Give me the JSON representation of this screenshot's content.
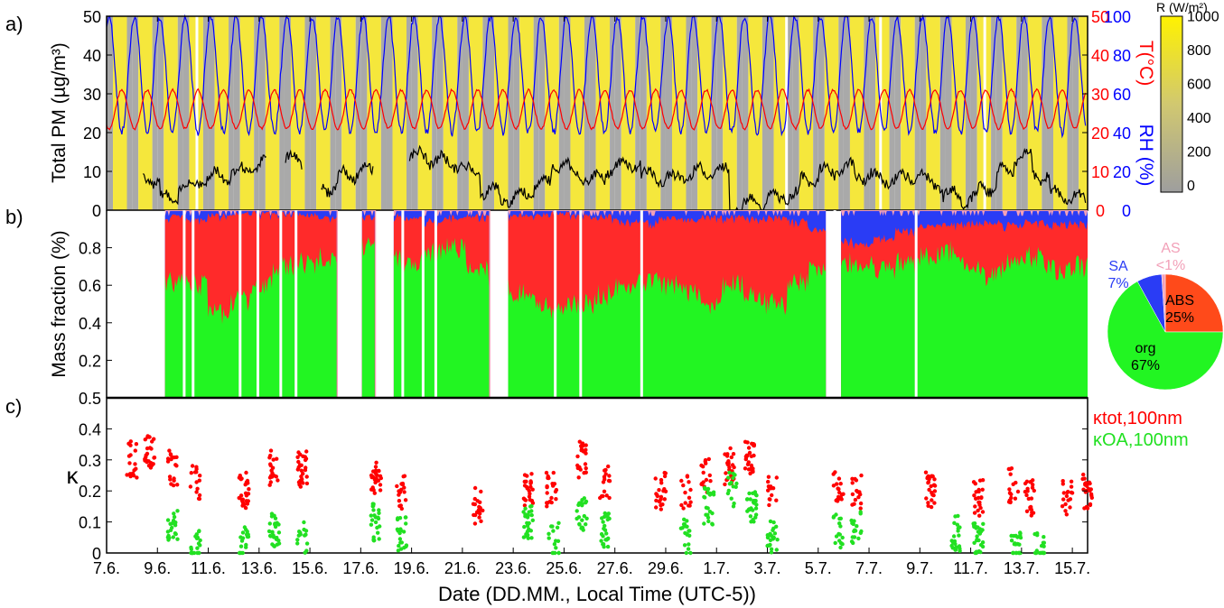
{
  "colors": {
    "rh": "#0000ff",
    "temp": "#ff0000",
    "pm": "#000000",
    "night": "#a9a9a9",
    "day": "#f5e73c",
    "org": "#22f522",
    "abs": "#ff2a2a",
    "sa": "#2a3cf5",
    "as": "#f2a0b8",
    "pie_abs": "#ff4a1a"
  },
  "labels": {
    "panel_a": "a)",
    "panel_b": "b)",
    "panel_c": "c)",
    "ylabel_a": "Total PM (µg/m³)",
    "ylabel_t": "T(°C)",
    "ylabel_rh": "RH (%)",
    "ylabel_b": "Mass fraction (%)",
    "ylabel_c": "κ",
    "xlabel": "Date (DD.MM., Local Time (UTC-5))",
    "colorbar_title": "R (W/m²)",
    "kappa_tot": "κtot,100nm",
    "kappa_oa": "κOA,100nm"
  },
  "chart_data": [
    {
      "type": "line",
      "panel": "a",
      "x_ticks": [
        "7.6.",
        "9.6.",
        "11.6.",
        "13.6.",
        "15.6.",
        "17.6.",
        "19.6.",
        "21.6.",
        "23.6.",
        "25.6.",
        "27.6.",
        "29.6.",
        "1.7.",
        "3.7.",
        "5.7.",
        "7.7.",
        "9.7.",
        "11.7.",
        "13.7.",
        "15.7."
      ],
      "ylim_pm": [
        0,
        50
      ],
      "yticks_pm": [
        "0",
        "10",
        "20",
        "30",
        "40",
        "50"
      ],
      "yticks_t": [
        "0",
        "10",
        "20",
        "30",
        "40",
        "50"
      ],
      "yticks_rh": [
        "0",
        "20",
        "40",
        "60",
        "80",
        "100"
      ],
      "colorbar": {
        "range": [
          0,
          1000
        ],
        "ticks": [
          "0",
          "200",
          "400",
          "600",
          "800",
          "1000"
        ]
      },
      "series": [
        {
          "name": "Total PM",
          "pm_daily_mean": [
            null,
            null,
            8,
            3,
            6,
            8,
            9,
            10,
            12,
            null,
            13,
            null,
            6,
            9,
            10,
            null,
            null,
            14,
            13,
            12,
            10,
            5,
            3,
            4,
            7,
            12,
            9,
            8,
            11,
            12,
            9,
            8,
            9,
            10,
            10,
            1,
            2,
            3,
            4,
            8,
            10,
            11,
            9,
            8,
            8,
            9,
            7,
            4,
            3,
            6,
            10,
            14,
            9,
            4,
            3
          ]
        },
        {
          "name": "T",
          "t_daily_min": 21,
          "t_daily_max": 31
        },
        {
          "name": "RH",
          "rh_daily_min": 40,
          "rh_daily_max": 100
        }
      ]
    },
    {
      "type": "area",
      "panel": "b",
      "ylim": [
        0,
        1
      ],
      "yticks": [
        "0.2",
        "0.4",
        "0.6",
        "0.8"
      ],
      "y_bottom_label": "0.5",
      "series_order": [
        "org",
        "ABS",
        "SA",
        "AS"
      ],
      "org_fraction_profile": [
        0.62,
        0.6,
        0.45,
        0.52,
        0.6,
        0.7,
        0.72,
        0.75,
        0.78,
        0.8,
        0.75,
        0.72,
        0.78,
        0.8,
        0.7,
        0.65,
        0.55,
        0.5,
        0.48,
        0.5,
        0.55,
        0.6,
        0.62,
        0.6,
        0.55,
        0.5,
        0.6,
        0.55,
        0.5,
        0.62,
        0.7,
        0.72,
        0.7,
        0.68,
        0.72,
        0.75,
        0.78,
        0.7,
        0.65,
        0.72,
        0.75,
        0.68,
        0.7
      ],
      "sa_fraction_profile": [
        0.03,
        0.05,
        0.02,
        0.01,
        0.01,
        0.01,
        0.02,
        0.03,
        0.02,
        0.03,
        0.02,
        0.04,
        0.05,
        0.03,
        0.02,
        0.02,
        0.02,
        0.02,
        0.01,
        0.02,
        0.03,
        0.05,
        0.06,
        0.04,
        0.05,
        0.03,
        0.03,
        0.04,
        0.03,
        0.05,
        0.1,
        0.15,
        0.18,
        0.14,
        0.1,
        0.08,
        0.07,
        0.06,
        0.06,
        0.07,
        0.06,
        0.07,
        0.06
      ]
    },
    {
      "type": "pie",
      "panel": "b-inset",
      "slices": [
        {
          "name": "org",
          "value": 67,
          "label": "67%"
        },
        {
          "name": "ABS",
          "value": 25,
          "label": "25%"
        },
        {
          "name": "SA",
          "value": 7,
          "label": "7%"
        },
        {
          "name": "AS",
          "value": 1,
          "label": "<1%"
        }
      ]
    },
    {
      "type": "scatter",
      "panel": "c",
      "ylim": [
        0,
        0.5
      ],
      "yticks": [
        "0",
        "0.1",
        "0.2",
        "0.3",
        "0.4"
      ],
      "series": [
        {
          "name": "κtot,100nm",
          "clusters_day_value": [
            [
              8.0,
              0.3
            ],
            [
              8.7,
              0.32
            ],
            [
              9.6,
              0.27
            ],
            [
              10.5,
              0.23
            ],
            [
              12.4,
              0.2
            ],
            [
              13.6,
              0.27
            ],
            [
              14.7,
              0.27
            ],
            [
              17.6,
              0.25
            ],
            [
              18.6,
              0.2
            ],
            [
              21.6,
              0.15
            ],
            [
              23.6,
              0.2
            ],
            [
              24.5,
              0.2
            ],
            [
              25.7,
              0.3
            ],
            [
              26.6,
              0.22
            ],
            [
              28.8,
              0.2
            ],
            [
              29.8,
              0.2
            ],
            [
              30.6,
              0.25
            ],
            [
              31.5,
              0.28
            ],
            [
              32.3,
              0.3
            ],
            [
              33.2,
              0.2
            ],
            [
              35.8,
              0.22
            ],
            [
              36.5,
              0.2
            ],
            [
              39.4,
              0.2
            ],
            [
              41.3,
              0.18
            ],
            [
              42.7,
              0.22
            ],
            [
              43.3,
              0.18
            ],
            [
              44.8,
              0.18
            ],
            [
              45.6,
              0.2
            ]
          ]
        },
        {
          "name": "κOA,100nm",
          "clusters_day_value": [
            [
              9.6,
              0.08
            ],
            [
              10.5,
              0.03
            ],
            [
              12.4,
              0.05
            ],
            [
              13.6,
              0.08
            ],
            [
              14.7,
              0.04
            ],
            [
              17.6,
              0.1
            ],
            [
              18.6,
              0.06
            ],
            [
              23.6,
              0.1
            ],
            [
              24.6,
              0.04
            ],
            [
              25.7,
              0.12
            ],
            [
              26.6,
              0.07
            ],
            [
              29.8,
              0.05
            ],
            [
              30.7,
              0.15
            ],
            [
              31.6,
              0.2
            ],
            [
              32.4,
              0.15
            ],
            [
              33.2,
              0.05
            ],
            [
              35.8,
              0.07
            ],
            [
              36.5,
              0.08
            ],
            [
              40.4,
              0.06
            ],
            [
              41.3,
              0.04
            ],
            [
              42.8,
              0.01
            ],
            [
              43.7,
              0.01
            ]
          ]
        }
      ]
    }
  ]
}
